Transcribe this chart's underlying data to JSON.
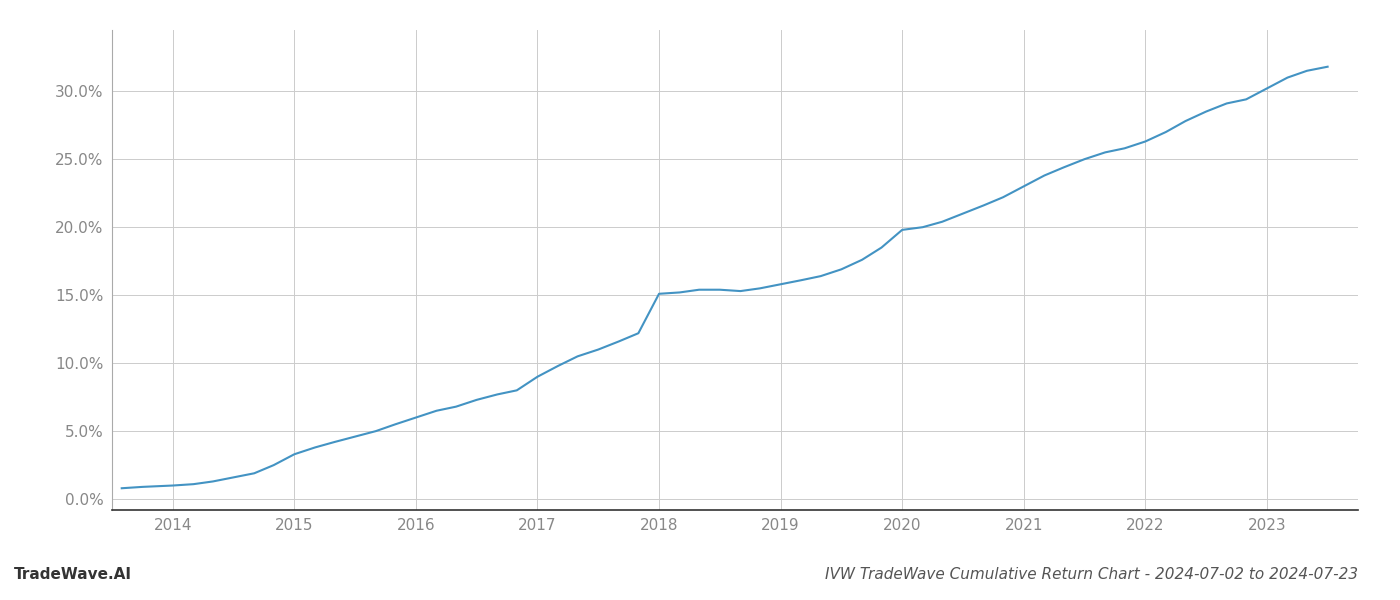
{
  "title": "IVW TradeWave Cumulative Return Chart - 2024-07-02 to 2024-07-23",
  "watermark": "TradeWave.AI",
  "line_color": "#4393c3",
  "background_color": "#ffffff",
  "grid_color": "#cccccc",
  "x_values": [
    2013.58,
    2013.75,
    2014.0,
    2014.17,
    2014.33,
    2014.5,
    2014.67,
    2014.83,
    2015.0,
    2015.17,
    2015.33,
    2015.5,
    2015.67,
    2015.83,
    2016.0,
    2016.17,
    2016.33,
    2016.5,
    2016.67,
    2016.83,
    2017.0,
    2017.17,
    2017.33,
    2017.5,
    2017.67,
    2017.83,
    2018.0,
    2018.17,
    2018.33,
    2018.5,
    2018.67,
    2018.83,
    2019.0,
    2019.17,
    2019.33,
    2019.5,
    2019.67,
    2019.83,
    2020.0,
    2020.17,
    2020.33,
    2020.5,
    2020.67,
    2020.83,
    2021.0,
    2021.17,
    2021.33,
    2021.5,
    2021.67,
    2021.83,
    2022.0,
    2022.17,
    2022.33,
    2022.5,
    2022.67,
    2022.83,
    2023.0,
    2023.17,
    2023.33,
    2023.5
  ],
  "y_values": [
    0.008,
    0.009,
    0.01,
    0.011,
    0.013,
    0.016,
    0.019,
    0.025,
    0.033,
    0.038,
    0.042,
    0.046,
    0.05,
    0.055,
    0.06,
    0.065,
    0.068,
    0.073,
    0.077,
    0.08,
    0.09,
    0.098,
    0.105,
    0.11,
    0.116,
    0.122,
    0.151,
    0.152,
    0.154,
    0.154,
    0.153,
    0.155,
    0.158,
    0.161,
    0.164,
    0.169,
    0.176,
    0.185,
    0.198,
    0.2,
    0.204,
    0.21,
    0.216,
    0.222,
    0.23,
    0.238,
    0.244,
    0.25,
    0.255,
    0.258,
    0.263,
    0.27,
    0.278,
    0.285,
    0.291,
    0.294,
    0.302,
    0.31,
    0.315,
    0.318
  ],
  "xlim": [
    2013.5,
    2023.75
  ],
  "ylim": [
    -0.008,
    0.345
  ],
  "yticks": [
    0.0,
    0.05,
    0.1,
    0.15,
    0.2,
    0.25,
    0.3
  ],
  "xticks": [
    2014,
    2015,
    2016,
    2017,
    2018,
    2019,
    2020,
    2021,
    2022,
    2023
  ],
  "xtick_labels": [
    "2014",
    "2015",
    "2016",
    "2017",
    "2018",
    "2019",
    "2020",
    "2021",
    "2022",
    "2023"
  ],
  "ytick_labels": [
    "0.0%",
    "5.0%",
    "10.0%",
    "15.0%",
    "20.0%",
    "25.0%",
    "30.0%"
  ],
  "line_width": 1.5,
  "title_fontsize": 11,
  "watermark_fontsize": 11,
  "tick_fontsize": 11
}
